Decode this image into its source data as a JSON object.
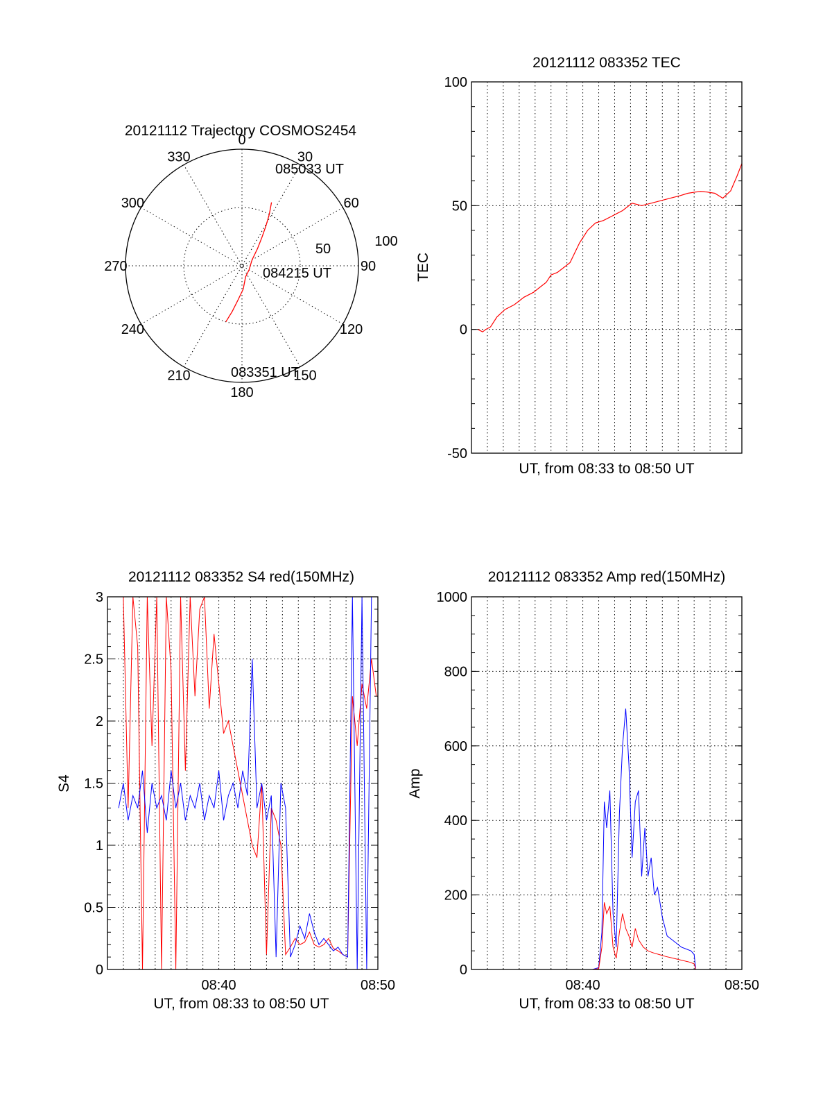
{
  "colors": {
    "red_series": "#ff0000",
    "blue_series": "#0000ff",
    "axes": "#000000",
    "background": "#ffffff"
  },
  "chart_data": [
    {
      "type": "polar",
      "title": "20121112 Trajectory COSMOS2454",
      "azimuth_labels": [
        "0",
        "30",
        "60",
        "90",
        "120",
        "150",
        "180",
        "210",
        "240",
        "270",
        "300",
        "330"
      ],
      "radius_labels": [
        "50",
        "100"
      ],
      "rlim": [
        0,
        100
      ],
      "grid": true,
      "track_labels": {
        "end": "085033 UT",
        "mid": "084215 UT",
        "start": "083351 UT"
      },
      "series": [
        {
          "color": "red",
          "points_az_deg_r": [
            [
              196,
              50
            ],
            [
              192,
              40
            ],
            [
              187,
              30
            ],
            [
              177,
              20
            ],
            [
              162,
              10
            ],
            [
              120,
              7
            ],
            [
              60,
              10
            ],
            [
              42,
              20
            ],
            [
              35,
              30
            ],
            [
              31,
              40
            ],
            [
              28,
              50
            ],
            [
              25,
              60
            ]
          ]
        }
      ]
    },
    {
      "type": "line",
      "title": "20121112 083352 TEC",
      "xlabel": "UT, from 08:33 to 08:50 UT",
      "ylabel": "TEC",
      "ylim": [
        -50,
        100
      ],
      "yticks": [
        "100",
        "50",
        "0",
        "-50"
      ],
      "xlim": [
        0,
        17
      ],
      "grid": true,
      "series": [
        {
          "color": "red",
          "x": [
            0.4,
            0.7,
            0.9,
            1.2,
            1.6,
            2.1,
            2.7,
            3.3,
            3.9,
            4.3,
            4.7,
            5.0,
            5.4,
            5.8,
            6.2,
            6.8,
            7.3,
            7.8,
            8.3,
            8.9,
            9.5,
            10.1,
            10.7,
            11.3,
            11.9,
            12.5,
            13.1,
            13.6,
            14.1,
            14.4,
            14.8,
            15.3,
            15.8,
            16.3,
            16.7,
            17.0
          ],
          "y": [
            0,
            -1,
            0,
            1,
            5,
            8,
            10,
            13,
            15,
            17,
            19,
            22,
            23,
            25,
            27,
            35,
            40,
            43,
            44,
            46,
            48,
            51,
            50,
            51,
            52,
            53,
            54,
            55,
            55.5,
            55.7,
            55.5,
            55,
            53,
            56,
            62,
            67
          ]
        }
      ]
    },
    {
      "type": "line",
      "title": "20121112 083352 S4 red(150MHz)",
      "xlabel": "UT, from 08:33 to 08:50 UT",
      "ylabel": "S4",
      "ylim": [
        0,
        3
      ],
      "yticks": [
        "3",
        "2.5",
        "2",
        "1.5",
        "1",
        "0.5",
        "0"
      ],
      "xticks": [
        "08:40",
        "08:50"
      ],
      "xlim": [
        0,
        17
      ],
      "grid": true,
      "series": [
        {
          "name": "red",
          "color": "red",
          "x": [
            1.0,
            1.3,
            1.6,
            1.9,
            2.2,
            2.5,
            2.8,
            3.1,
            3.4,
            3.7,
            4.0,
            4.3,
            4.6,
            4.9,
            5.2,
            5.5,
            5.8,
            6.1,
            6.4,
            6.7,
            7.0,
            7.3,
            7.6,
            7.9,
            8.2,
            8.5,
            8.8,
            9.1,
            9.4,
            9.7,
            10.0,
            10.3,
            10.6,
            10.9,
            11.2,
            11.5,
            11.8,
            12.1,
            12.4,
            12.7,
            13.0,
            13.3,
            13.6,
            13.9,
            14.2,
            14.5,
            14.8,
            15.1,
            15.4,
            15.7,
            16.0,
            16.3,
            16.6,
            16.9
          ],
          "y": [
            3.0,
            1.3,
            3.0,
            2.6,
            0.0,
            3.0,
            1.8,
            3.0,
            0.0,
            3.0,
            2.4,
            0.0,
            3.0,
            1.6,
            3.0,
            2.2,
            2.9,
            3.0,
            2.1,
            2.7,
            2.3,
            1.9,
            2.0,
            1.8,
            1.6,
            1.4,
            1.2,
            1.0,
            0.9,
            1.5,
            0.12,
            1.3,
            1.2,
            1.0,
            0.12,
            0.18,
            0.25,
            0.2,
            0.22,
            0.3,
            0.2,
            0.18,
            0.2,
            0.25,
            0.17,
            0.15,
            0.12,
            0.1,
            2.2,
            1.8,
            2.3,
            2.1,
            2.5,
            2.2
          ]
        },
        {
          "name": "blue",
          "color": "blue",
          "x": [
            0.7,
            1.0,
            1.3,
            1.6,
            1.9,
            2.2,
            2.5,
            2.8,
            3.1,
            3.4,
            3.7,
            4.0,
            4.3,
            4.6,
            4.9,
            5.2,
            5.5,
            5.8,
            6.1,
            6.4,
            6.7,
            7.0,
            7.3,
            7.6,
            7.9,
            8.2,
            8.5,
            8.8,
            9.1,
            9.4,
            9.7,
            10.0,
            10.3,
            10.6,
            10.9,
            11.2,
            11.5,
            11.8,
            12.1,
            12.4,
            12.7,
            13.0,
            13.3,
            13.6,
            13.9,
            14.2,
            14.5,
            14.8,
            15.1,
            15.4,
            15.7,
            16.0,
            16.3,
            16.6,
            16.9
          ],
          "y": [
            1.3,
            1.5,
            1.2,
            1.4,
            1.3,
            1.6,
            1.1,
            1.5,
            1.3,
            1.4,
            1.2,
            1.6,
            1.3,
            1.5,
            1.2,
            1.4,
            1.3,
            1.5,
            1.2,
            1.4,
            1.3,
            1.6,
            1.2,
            1.4,
            1.5,
            1.3,
            1.6,
            1.4,
            2.5,
            1.3,
            1.5,
            1.2,
            1.4,
            0.1,
            1.5,
            1.3,
            0.1,
            0.2,
            0.35,
            0.25,
            0.45,
            0.3,
            0.2,
            0.25,
            0.2,
            0.15,
            0.18,
            0.12,
            0.1,
            3.0,
            0.0,
            3.0,
            0.0,
            3.0,
            3.0
          ]
        }
      ]
    },
    {
      "type": "line",
      "title": "20121112 083352 Amp red(150MHz)",
      "xlabel": "UT, from 08:33 to 08:50 UT",
      "ylabel": "Amp",
      "ylim": [
        0,
        1000
      ],
      "yticks": [
        "1000",
        "800",
        "600",
        "400",
        "200",
        "0"
      ],
      "xticks": [
        "08:40",
        "08:50"
      ],
      "xlim": [
        0,
        17
      ],
      "grid": true,
      "series": [
        {
          "name": "blue",
          "color": "blue",
          "x": [
            0.7,
            2.0,
            4.0,
            6.0,
            7.6,
            8.0,
            8.2,
            8.35,
            8.5,
            8.7,
            8.9,
            9.1,
            9.3,
            9.5,
            9.7,
            9.9,
            10.1,
            10.3,
            10.5,
            10.7,
            10.9,
            11.1,
            11.3,
            11.5,
            11.7,
            12.0,
            12.3,
            12.6,
            12.9,
            13.2,
            13.5,
            13.8,
            14.0,
            14.1,
            15.0,
            17.0
          ],
          "y": [
            0,
            0,
            0,
            0,
            0,
            5,
            100,
            450,
            380,
            480,
            150,
            60,
            420,
            600,
            700,
            550,
            300,
            450,
            480,
            250,
            380,
            250,
            300,
            200,
            220,
            140,
            90,
            80,
            70,
            60,
            55,
            50,
            40,
            0,
            0,
            0
          ]
        },
        {
          "name": "red",
          "color": "red",
          "x": [
            0.7,
            4.0,
            7.6,
            8.0,
            8.2,
            8.35,
            8.5,
            8.7,
            8.9,
            9.1,
            9.3,
            9.5,
            9.7,
            9.9,
            10.1,
            10.3,
            10.5,
            10.8,
            11.1,
            11.4,
            11.8,
            12.2,
            12.7,
            13.2,
            13.7,
            14.0,
            14.1,
            17.0
          ],
          "y": [
            0,
            0,
            0,
            2,
            60,
            180,
            150,
            170,
            60,
            30,
            100,
            150,
            110,
            90,
            60,
            110,
            80,
            60,
            50,
            45,
            40,
            35,
            30,
            25,
            20,
            15,
            0,
            0
          ]
        }
      ]
    }
  ]
}
